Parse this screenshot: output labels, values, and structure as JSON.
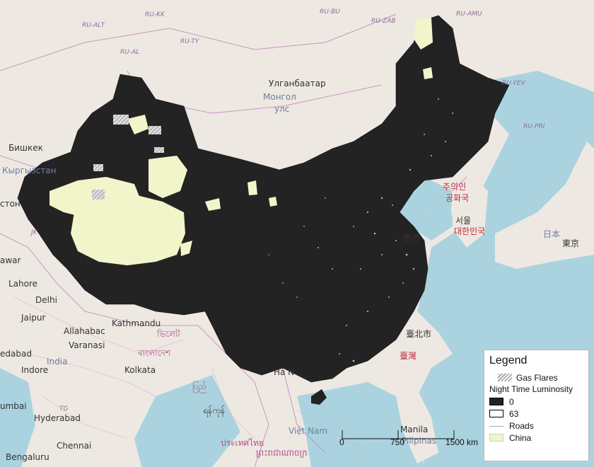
{
  "map": {
    "labels": {
      "ru_alt": "RU-ALT",
      "ru_al": "RU-AL",
      "ru_ty": "RU-TY",
      "ru_kk": "RU-KK",
      "ru_bu": "RU-BU",
      "ru_zab": "RU-ZAB",
      "ru_amu": "RU-AMU",
      "ru_yev": "RU-YEV",
      "ru_pri": "RU-PRI",
      "ulaanbaatar": "Улганбаатар",
      "mongolia_1": "Монгол",
      "mongolia_2": "улс",
      "bishkek": "Бишкек",
      "kyrgyzstan": "Кыргызстан",
      "tajik": "стон",
      "jk": "JK",
      "awar": "awar",
      "lahore": "Lahore",
      "delhi": "Delhi",
      "jaipur": "Jaipur",
      "allahabad": "Allahabac",
      "varanasi": "Varanasi",
      "kathmandu": "Kathmandu",
      "bhutan": "ভিলেট",
      "bangladesh": "বাংলাদেশ",
      "kolkata": "Kolkata",
      "ahmedabad": "edabad",
      "india": "India",
      "indore": "Indore",
      "mumbai": "umbai",
      "hyderabad": "Hyderabad",
      "chennai": "Chennai",
      "bengaluru": "Bengaluru",
      "tg": "TG",
      "myanmar1": "ပြည်",
      "myanmar2": "ရန်ကုန်",
      "hanoi": "Hà N",
      "laos": "ประเทศไทย",
      "cambodia": "ព្រះរាជាណាចក្រ",
      "vietnam": "Việt Nam",
      "manila": "Manila",
      "pilipinas": "Pilipinas",
      "dprk": "주의인",
      "gongwha": "공화국",
      "seoul": "서울",
      "korea": "대한민국",
      "tokyo": "東京",
      "japan": "日本",
      "taipei": "臺北市",
      "taiwan": "臺灣",
      "shanghai": "島市"
    }
  },
  "legend": {
    "title": "Legend",
    "gas_flares": "Gas Flares",
    "ntl_title": "Night Time Luminosity",
    "ntl_min": "0",
    "ntl_max": "63",
    "roads": "Roads",
    "china": "China"
  },
  "scalebar": {
    "t0": "0",
    "t1": "750",
    "t2": "1500 km"
  },
  "colors": {
    "land": "#eee8e2",
    "sea": "#aad3df",
    "china_dark": "#232323",
    "desert_fill": "#f1f5c9",
    "border": "#c28dc0"
  }
}
